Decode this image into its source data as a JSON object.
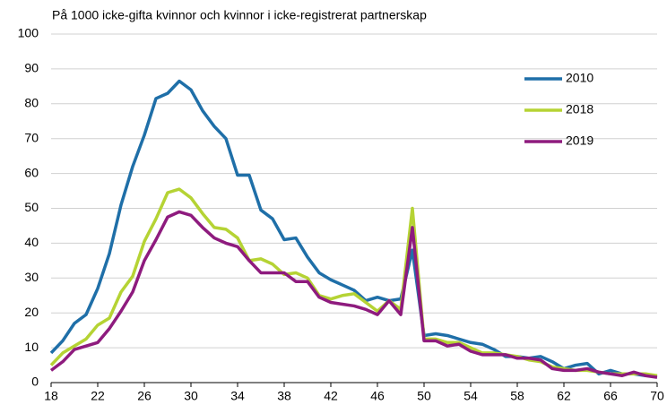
{
  "chart_data": {
    "type": "line",
    "title": "På 1000 icke-gifta kvinnor och kvinnor i icke-registrerat partnerskap",
    "x": [
      18,
      19,
      20,
      21,
      22,
      23,
      24,
      25,
      26,
      27,
      28,
      29,
      30,
      31,
      32,
      33,
      34,
      35,
      36,
      37,
      38,
      39,
      40,
      41,
      42,
      43,
      44,
      45,
      46,
      47,
      48,
      49,
      50,
      51,
      52,
      53,
      54,
      55,
      56,
      57,
      58,
      59,
      60,
      61,
      62,
      63,
      64,
      65,
      66,
      67,
      68,
      69,
      70
    ],
    "series": [
      {
        "name": "2010",
        "color": "#1f6fa8",
        "values": [
          8.5,
          12,
          17,
          19.5,
          27,
          37,
          51,
          62,
          71,
          81.5,
          83,
          86.5,
          84,
          78,
          73.5,
          70,
          59.5,
          59.5,
          49.5,
          47,
          41,
          41.5,
          36,
          31.5,
          29.5,
          28,
          26.5,
          23.5,
          24.5,
          23.5,
          24,
          38,
          13.5,
          14,
          13.5,
          12.5,
          11.5,
          11,
          9.5,
          7.5,
          7.5,
          7,
          7.5,
          6,
          4,
          5,
          5.5,
          2.5,
          3.5,
          2.5,
          2.5,
          2,
          2
        ]
      },
      {
        "name": "2018",
        "color": "#b5d334",
        "values": [
          5,
          8.5,
          10.5,
          12.5,
          16.5,
          18.5,
          26,
          30.5,
          40.5,
          47,
          54.5,
          55.5,
          53,
          48.5,
          44.5,
          44,
          41.5,
          35,
          35.5,
          34,
          31,
          31.5,
          30,
          25,
          24,
          25,
          25.5,
          23,
          20.5,
          23.5,
          21,
          50,
          12.5,
          12.5,
          11.5,
          11.5,
          10,
          8.5,
          8.5,
          8,
          7.5,
          6.5,
          6,
          4.5,
          4,
          3.5,
          3.5,
          3,
          2.5,
          2.5,
          2.5,
          2.5,
          2
        ]
      },
      {
        "name": "2019",
        "color": "#8e1b7e",
        "values": [
          3.5,
          6,
          9.5,
          10.5,
          11.5,
          15.5,
          20.5,
          26,
          35,
          41,
          47.5,
          49,
          48,
          44.5,
          41.5,
          40,
          39,
          35,
          31.5,
          31.5,
          31.5,
          29,
          29,
          24.5,
          23,
          22.5,
          22,
          21,
          19.5,
          23.5,
          19.5,
          44.5,
          12,
          12,
          10.5,
          11,
          9,
          8,
          8,
          8,
          7,
          7,
          6.5,
          4,
          3.5,
          3.5,
          4,
          3,
          2.5,
          2,
          3,
          2,
          1.5
        ]
      }
    ],
    "xlim": [
      18,
      70
    ],
    "xticks": [
      18,
      22,
      26,
      30,
      34,
      38,
      42,
      46,
      50,
      54,
      58,
      62,
      66,
      70
    ],
    "ylim": [
      0,
      100
    ],
    "yticks": [
      0,
      10,
      20,
      30,
      40,
      50,
      60,
      70,
      80,
      90,
      100
    ],
    "grid": true,
    "legend": "top-right"
  }
}
